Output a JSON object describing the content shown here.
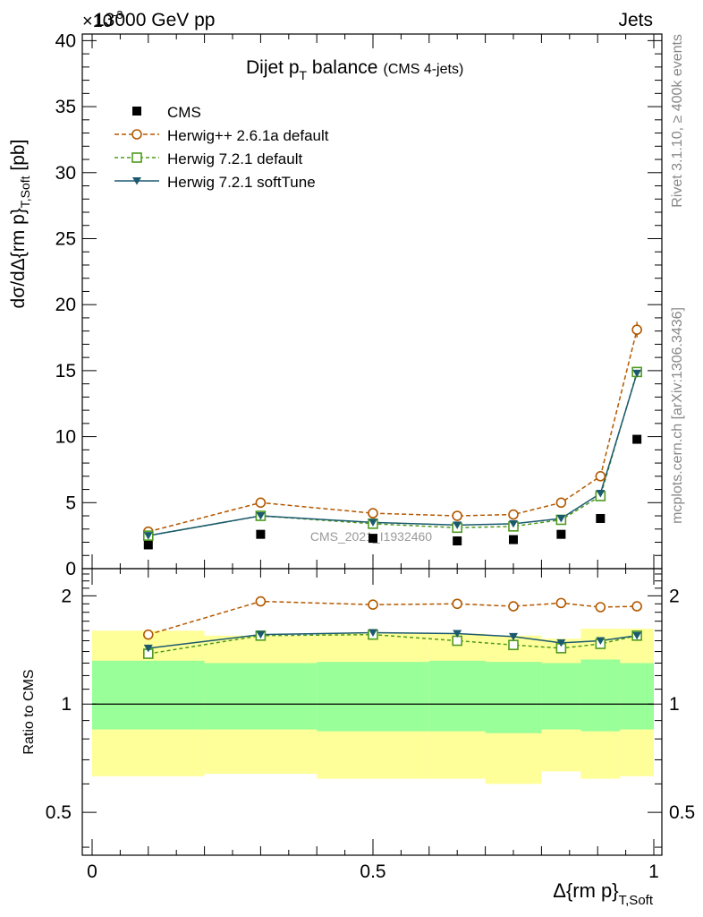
{
  "header": {
    "energy_label": "13000 GeV pp",
    "exponent_label": "×10",
    "exponent_sup": "-3",
    "process_label": "Jets",
    "rivet_label": "Rivet 3.1.10, ≥ 400k events",
    "mcplots_label": "mcplots.cern.ch [arXiv:1306.3436]",
    "watermark": "CMS_2021_I1932460"
  },
  "chart_data": [
    {
      "type": "line",
      "title": "Dijet p",
      "title_sub": "T",
      "title_rest": " balance",
      "title_note": "(CMS 4-jets)",
      "ylabel": "dσ/dΔ{rm p}",
      "ylabel_sub": "T,Soft",
      "ylabel_unit": "[pb]",
      "xlim": [
        0,
        1
      ],
      "ylim": [
        0,
        40.5
      ],
      "y_ticks": [
        0,
        5,
        10,
        15,
        20,
        25,
        30,
        35,
        40
      ],
      "legend_position": "top-left",
      "x": [
        0.1,
        0.3,
        0.5,
        0.65,
        0.75,
        0.835,
        0.905,
        0.97
      ],
      "series": [
        {
          "name": "CMS",
          "style": "marker",
          "color": "#000000",
          "values": [
            1.8,
            2.6,
            2.3,
            2.1,
            2.2,
            2.6,
            3.8,
            9.8
          ]
        },
        {
          "name": "Herwig++ 2.6.1a default",
          "style": "dashed-circle",
          "color": "#b35900",
          "values": [
            2.8,
            5.0,
            4.2,
            4.0,
            4.1,
            5.0,
            7.0,
            18.1
          ],
          "errors": [
            0.15,
            0.2,
            0.2,
            0.2,
            0.2,
            0.25,
            0.3,
            0.6
          ]
        },
        {
          "name": "Herwig 7.2.1 default",
          "style": "dashed-square",
          "color": "#4f9a1f",
          "values": [
            2.5,
            4.0,
            3.4,
            3.1,
            3.2,
            3.7,
            5.5,
            14.9
          ]
        },
        {
          "name": "Herwig 7.2.1 softTune",
          "style": "solid-triangle",
          "color": "#1b5a6e",
          "values": [
            2.5,
            4.0,
            3.5,
            3.3,
            3.4,
            3.8,
            5.7,
            14.8
          ]
        }
      ]
    },
    {
      "type": "line",
      "ylabel": "Ratio to CMS",
      "xlabel": "Δ{rm p}",
      "xlabel_sub": "T,Soft",
      "xlim": [
        0,
        1
      ],
      "ylim": [
        0.38,
        2.38
      ],
      "y_ticks": [
        0.5,
        1,
        2
      ],
      "y_tick_labels": [
        "0.5",
        "1",
        "2"
      ],
      "x_ticks": [
        0,
        0.5,
        1
      ],
      "x_tick_labels": [
        "0",
        "0.5",
        "1"
      ],
      "bins": [
        0,
        0.2,
        0.4,
        0.6,
        0.7,
        0.8,
        0.87,
        0.94,
        1.0
      ],
      "band_outer_low": [
        0.63,
        0.64,
        0.62,
        0.62,
        0.6,
        0.65,
        0.62,
        0.63
      ],
      "band_outer_high": [
        1.6,
        1.55,
        1.57,
        1.57,
        1.55,
        1.52,
        1.62,
        1.62
      ],
      "band_inner_low": [
        0.85,
        0.85,
        0.84,
        0.84,
        0.83,
        0.85,
        0.84,
        0.85
      ],
      "band_inner_high": [
        1.32,
        1.3,
        1.31,
        1.32,
        1.31,
        1.3,
        1.33,
        1.3
      ],
      "band_colors": {
        "outer": "#ffff99",
        "inner": "#99ff99"
      },
      "x": [
        0.1,
        0.3,
        0.5,
        0.65,
        0.75,
        0.835,
        0.905,
        0.97
      ],
      "series": [
        {
          "name": "Herwig++ 2.6.1a default",
          "color": "#b35900",
          "style": "dashed-circle",
          "values": [
            1.56,
            1.93,
            1.89,
            1.9,
            1.87,
            1.91,
            1.86,
            1.87
          ],
          "errors": [
            0.04,
            0.03,
            0.04,
            0.05,
            0.05,
            0.06,
            0.05,
            0.04
          ]
        },
        {
          "name": "Herwig 7.2.1 default",
          "color": "#4f9a1f",
          "style": "dashed-square",
          "values": [
            1.38,
            1.55,
            1.56,
            1.5,
            1.46,
            1.43,
            1.47,
            1.55
          ]
        },
        {
          "name": "Herwig 7.2.1 softTune",
          "color": "#1b5a6e",
          "style": "solid-triangle",
          "values": [
            1.43,
            1.56,
            1.58,
            1.57,
            1.54,
            1.48,
            1.5,
            1.55
          ]
        }
      ]
    }
  ]
}
